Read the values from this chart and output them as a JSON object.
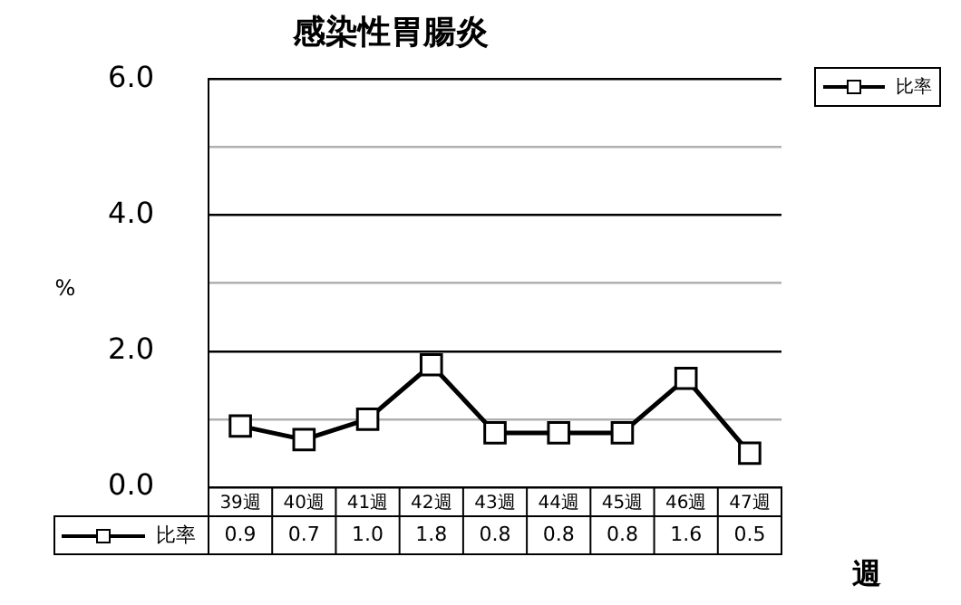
{
  "chart_data": {
    "type": "line",
    "title": "感染性胃腸炎",
    "xlabel": "週",
    "ylabel": "%",
    "categories": [
      "39週",
      "40週",
      "41週",
      "42週",
      "43週",
      "44週",
      "45週",
      "46週",
      "47週"
    ],
    "series": [
      {
        "name": "比率",
        "color": "#000000",
        "values": [
          0.9,
          0.7,
          1.0,
          1.8,
          0.8,
          0.8,
          0.8,
          1.6,
          0.5
        ],
        "value_labels": [
          "0.9",
          "0.7",
          "1.0",
          "1.8",
          "0.8",
          "0.8",
          "0.8",
          "1.6",
          "0.5"
        ]
      }
    ],
    "ylim": [
      0,
      6
    ],
    "yticks": [
      {
        "value": 0,
        "label": "0.0"
      },
      {
        "value": 1,
        "label": null
      },
      {
        "value": 2,
        "label": "2.0"
      },
      {
        "value": 3,
        "label": null
      },
      {
        "value": 4,
        "label": "4.0"
      },
      {
        "value": 5,
        "label": null
      },
      {
        "value": 6,
        "label": "6.0"
      }
    ],
    "grid": "y",
    "legend": "bottom left",
    "marker": "square",
    "line_style": "solid"
  }
}
